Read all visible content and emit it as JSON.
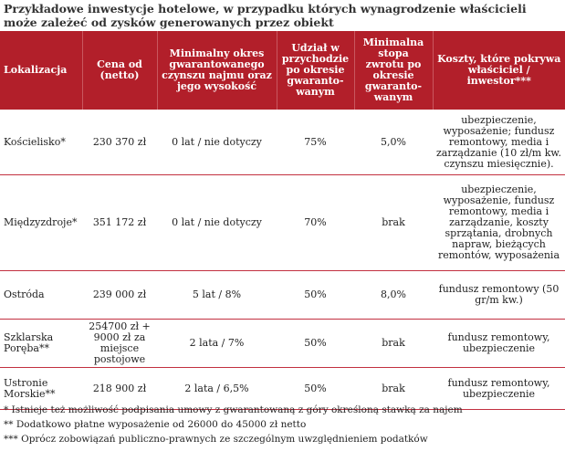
{
  "title": "Przykładowe inwestycje hotelowe, w przypadku których wynagrodzenie właścicieli może zależeć od zysków generowanych przez obiekt",
  "table": {
    "headers": [
      "Lokalizacja",
      "Cena od (netto)",
      "Minimalny okres gwarantowanego czynszu najmu oraz jego wysokość",
      "Udział w przychodzie po okresie gwaranto-wanym",
      "Minimalna stopa zwrotu po okresie gwaranto-wanym",
      "Koszty, które pokrywa właściciel / inwestor***"
    ],
    "rows": [
      {
        "location": "Kościelisko*",
        "price": "230 370 zł",
        "guarantee": "0 lat / nie dotyczy",
        "share": "75%",
        "rate": "5,0%",
        "costs": "ubezpieczenie, wyposażenie; fundusz remontowy, media i zarządzanie (10 zł/m kw. czynszu miesięcznie)."
      },
      {
        "location": "Międzyzdroje*",
        "price": "351 172 zł",
        "guarantee": "0 lat / nie dotyczy",
        "share": "70%",
        "rate": "brak",
        "costs": "ubezpieczenie, wyposażenie, fundusz remontowy, media i zarządzanie, koszty sprzątania, drobnych napraw, bieżących remontów, wyposażenia"
      },
      {
        "location": "Ostróda",
        "price": "239 000 zł",
        "guarantee": "5 lat / 8%",
        "share": "50%",
        "rate": "8,0%",
        "costs": "fundusz remontowy (50 gr/m kw.)"
      },
      {
        "location": "Szklarska Poręba**",
        "price": "254700 zł + 9000 zł za miejsce postojowe",
        "guarantee": "2 lata / 7%",
        "share": "50%",
        "rate": "brak",
        "costs": "fundusz remontowy, ubezpieczenie"
      },
      {
        "location": "Ustronie Morskie**",
        "price": "218 900 zł",
        "guarantee": "2 lata / 6,5%",
        "share": "50%",
        "rate": "brak",
        "costs": "fundusz remontowy, ubezpieczenie"
      }
    ]
  },
  "notes": [
    "* Istnieje też możliwość podpisania umowy z gwarantowaną z góry określoną stawką za najem",
    "** Dodatkowo płatne wyposażenie od 26000 do 45000 zł netto",
    "*** Oprócz zobowiązań publiczno-prawnych ze szczególnym uwzględnieniem podatków"
  ],
  "colors": {
    "header_bg": "#b21f2a",
    "row_border": "#c23040"
  }
}
